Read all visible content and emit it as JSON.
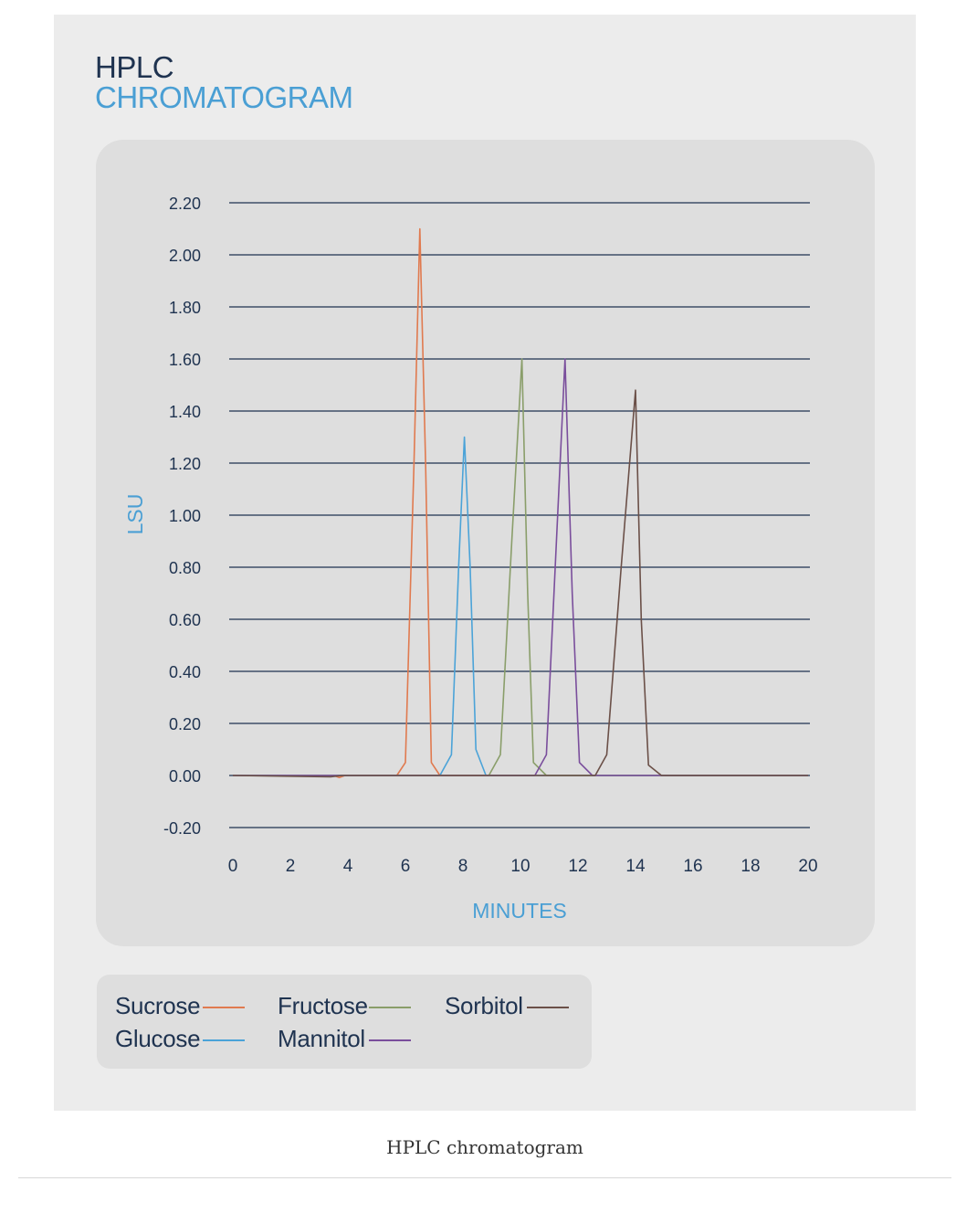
{
  "header": {
    "title_line1": "HPLC",
    "title_line2": "CHROMATOGRAM"
  },
  "caption": "HPLC chromatogram",
  "chart_data": {
    "type": "line",
    "xlabel": "MINUTES",
    "ylabel": "LSU",
    "xlim": [
      0,
      20
    ],
    "ylim": [
      -0.2,
      2.2
    ],
    "x_ticks": [
      0,
      2,
      4,
      6,
      8,
      10,
      12,
      14,
      16,
      18,
      20
    ],
    "y_ticks": [
      "-0.20",
      "0.00",
      "0.20",
      "0.40",
      "0.60",
      "0.80",
      "1.00",
      "1.20",
      "1.40",
      "1.60",
      "1.80",
      "2.00",
      "2.20"
    ],
    "grid": true,
    "series": [
      {
        "name": "Sucrose",
        "color": "#e07a4f",
        "points": [
          [
            0,
            0
          ],
          [
            3.5,
            0
          ],
          [
            3.7,
            -0.008
          ],
          [
            3.9,
            0
          ],
          [
            5.7,
            0
          ],
          [
            6.0,
            0.05
          ],
          [
            6.3,
            1.2
          ],
          [
            6.5,
            2.1
          ],
          [
            6.7,
            1.2
          ],
          [
            6.9,
            0.05
          ],
          [
            7.2,
            0
          ],
          [
            20,
            0
          ]
        ]
      },
      {
        "name": "Glucose",
        "color": "#4ba3d8",
        "points": [
          [
            0,
            0
          ],
          [
            7.2,
            0
          ],
          [
            7.6,
            0.08
          ],
          [
            7.85,
            0.8
          ],
          [
            8.05,
            1.3
          ],
          [
            8.25,
            0.8
          ],
          [
            8.45,
            0.1
          ],
          [
            8.8,
            0
          ],
          [
            20,
            0
          ]
        ]
      },
      {
        "name": "Fructose",
        "color": "#8a9e6a",
        "points": [
          [
            0,
            0
          ],
          [
            8.9,
            0
          ],
          [
            9.3,
            0.08
          ],
          [
            9.7,
            0.9
          ],
          [
            10.05,
            1.6
          ],
          [
            10.25,
            0.7
          ],
          [
            10.45,
            0.05
          ],
          [
            10.9,
            0
          ],
          [
            20,
            0
          ]
        ]
      },
      {
        "name": "Mannitol",
        "color": "#7a4e9c",
        "points": [
          [
            0,
            0
          ],
          [
            10.5,
            0
          ],
          [
            10.9,
            0.08
          ],
          [
            11.25,
            0.9
          ],
          [
            11.55,
            1.6
          ],
          [
            11.8,
            0.7
          ],
          [
            12.05,
            0.05
          ],
          [
            12.5,
            0
          ],
          [
            20,
            0
          ]
        ]
      },
      {
        "name": "Sorbitol",
        "color": "#6b5048",
        "points": [
          [
            0,
            0
          ],
          [
            3.4,
            -0.005
          ],
          [
            3.8,
            0
          ],
          [
            12.6,
            0
          ],
          [
            13.0,
            0.08
          ],
          [
            13.5,
            0.8
          ],
          [
            14.0,
            1.48
          ],
          [
            14.2,
            0.6
          ],
          [
            14.45,
            0.04
          ],
          [
            14.9,
            0
          ],
          [
            20,
            0
          ]
        ]
      }
    ]
  }
}
